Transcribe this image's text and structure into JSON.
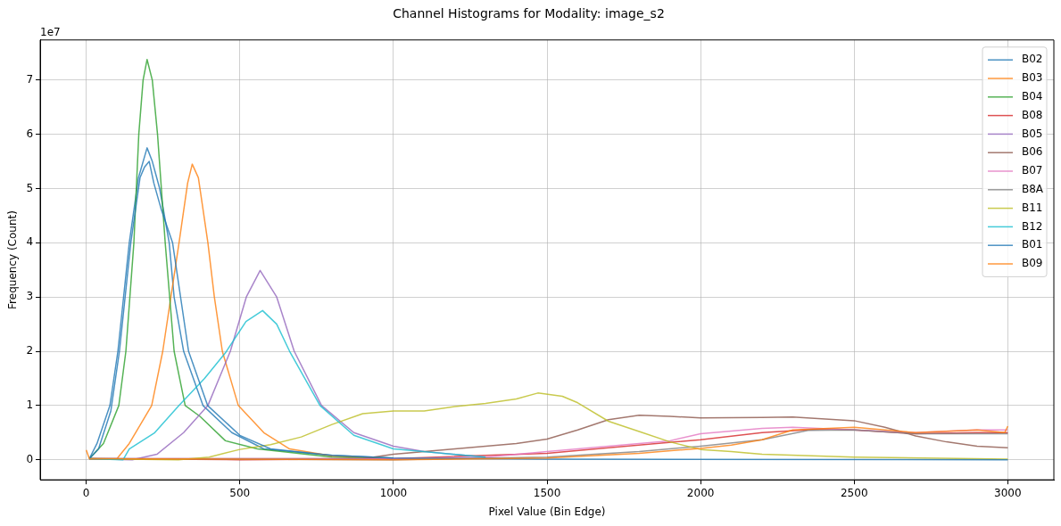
{
  "chart_data": {
    "type": "line",
    "title": "Channel Histograms for Modality: image_s2",
    "xlabel": "Pixel Value (Bin Edge)",
    "ylabel": "Frequency (Count)",
    "annotations": [
      "1e7"
    ],
    "xlim": [
      -150,
      3150
    ],
    "ylim": [
      -0.37,
      7.74
    ],
    "xticks": [
      0,
      500,
      1000,
      1500,
      2000,
      2500,
      3000
    ],
    "yticks": [
      0,
      1,
      2,
      3,
      4,
      5,
      6,
      7
    ],
    "grid": true,
    "legend": "top right",
    "line_style": "solid",
    "marker": "none",
    "series": [
      {
        "name": "B02",
        "color": "#1f77b4",
        "x": [
          10,
          35,
          77,
          103,
          140,
          170,
          198,
          215,
          239,
          270,
          286,
          317,
          380,
          474,
          578,
          800,
          1000
        ],
        "values": [
          0.02,
          0.3,
          1,
          2,
          4,
          5.2,
          5.75,
          5.5,
          5,
          4,
          3,
          2,
          1,
          0.5,
          0.2,
          0.08,
          0.03
        ]
      },
      {
        "name": "B03",
        "color": "#ff7f0e",
        "x": [
          10,
          100,
          140,
          213,
          249,
          302,
          330,
          345,
          365,
          396,
          417,
          443,
          495,
          578,
          662,
          800,
          1000
        ],
        "values": [
          0.02,
          0.02,
          0.3,
          1,
          2,
          4,
          5.1,
          5.45,
          5.2,
          4,
          3,
          2,
          1,
          0.5,
          0.2,
          0.07,
          0.02
        ]
      },
      {
        "name": "B04",
        "color": "#2ca02c",
        "x": [
          10,
          56,
          106,
          129,
          155,
          171,
          185,
          198,
          215,
          232,
          257,
          286,
          322,
          370,
          453,
          557,
          800,
          1000
        ],
        "values": [
          0.02,
          0.3,
          1,
          2,
          4,
          6,
          7,
          7.38,
          7,
          6,
          4,
          2,
          1,
          0.8,
          0.35,
          0.2,
          0.05,
          0.02
        ]
      },
      {
        "name": "B08",
        "color": "#d62728",
        "x": [
          10,
          500,
          1000,
          1500,
          1700,
          2000,
          2200,
          2400,
          2500,
          2700,
          2900,
          3000
        ],
        "values": [
          0.02,
          0,
          0.02,
          0.12,
          0.22,
          0.37,
          0.5,
          0.57,
          0.55,
          0.48,
          0.5,
          0.5
        ]
      },
      {
        "name": "B05",
        "color": "#9467bd",
        "x": [
          10,
          150,
          230,
          317,
          396,
          469,
          521,
          566,
          620,
          677,
          766,
          871,
          1000,
          1100,
          1300
        ],
        "values": [
          0.02,
          0,
          0.1,
          0.5,
          1,
          2,
          3,
          3.49,
          3,
          2,
          1,
          0.5,
          0.25,
          0.15,
          0.05
        ]
      },
      {
        "name": "B06",
        "color": "#8c564b",
        "x": [
          10,
          900,
          1000,
          1100,
          1200,
          1300,
          1400,
          1500,
          1600,
          1700,
          1800,
          1900,
          2000,
          2200,
          2300,
          2500,
          2600,
          2700,
          2800,
          2900,
          3000
        ],
        "values": [
          0.02,
          0.02,
          0.1,
          0.15,
          0.2,
          0.25,
          0.3,
          0.38,
          0.55,
          0.74,
          0.82,
          0.8,
          0.77,
          0.78,
          0.79,
          0.72,
          0.6,
          0.44,
          0.33,
          0.25,
          0.22
        ]
      },
      {
        "name": "B07",
        "color": "#e377c2",
        "x": [
          10,
          1000,
          1300,
          1500,
          1700,
          1900,
          2000,
          2200,
          2300,
          2500,
          2700,
          2900,
          3000
        ],
        "values": [
          0.02,
          0.02,
          0.05,
          0.15,
          0.25,
          0.35,
          0.48,
          0.58,
          0.6,
          0.55,
          0.5,
          0.55,
          0.55
        ]
      },
      {
        "name": "B8A",
        "color": "#7f7f7f",
        "x": [
          10,
          1000,
          1500,
          1800,
          2000,
          2200,
          2350,
          2500,
          2700,
          3000
        ],
        "values": [
          0.02,
          0,
          0.05,
          0.15,
          0.25,
          0.37,
          0.54,
          0.55,
          0.48,
          0.48
        ]
      },
      {
        "name": "B11",
        "color": "#bcbd22",
        "x": [
          10,
          300,
          400,
          500,
          600,
          700,
          800,
          900,
          1000,
          1100,
          1200,
          1300,
          1400,
          1470,
          1550,
          1600,
          1700,
          1800,
          1900,
          2000,
          2100,
          2200,
          2500,
          3000
        ],
        "values": [
          0.02,
          0,
          0.05,
          0.19,
          0.28,
          0.42,
          0.65,
          0.85,
          0.9,
          0.9,
          0.98,
          1.04,
          1.12,
          1.23,
          1.17,
          1.05,
          0.71,
          0.52,
          0.33,
          0.19,
          0.15,
          0.1,
          0.05,
          0.01
        ]
      },
      {
        "name": "B12",
        "color": "#17becf",
        "x": [
          10,
          120,
          140,
          223,
          302,
          385,
          453,
          520,
          574,
          620,
          662,
          761,
          871,
          1000,
          1300
        ],
        "values": [
          0.02,
          0,
          0.2,
          0.5,
          1,
          1.5,
          1.97,
          2.55,
          2.75,
          2.5,
          2,
          1,
          0.45,
          0.2,
          0.05
        ]
      },
      {
        "name": "B01",
        "color": "#1f77b4",
        "x": [
          10,
          40,
          80,
          108,
          145,
          175,
          190,
          205,
          220,
          245,
          281,
          333,
          395,
          500,
          600,
          800,
          1000,
          1500,
          3000
        ],
        "values": [
          0.02,
          0.2,
          0.9,
          2,
          4,
          5.2,
          5.4,
          5.5,
          5.1,
          4.6,
          4,
          2,
          1,
          0.45,
          0.2,
          0.08,
          0.03,
          0.01,
          0
        ]
      },
      {
        "name": "B09",
        "color": "#ff7f0e",
        "x": [
          0,
          10,
          1000,
          1500,
          1800,
          2000,
          2100,
          2200,
          2300,
          2500,
          2700,
          2900,
          2990,
          3000
        ],
        "values": [
          0.18,
          0.02,
          0,
          0.03,
          0.12,
          0.21,
          0.27,
          0.37,
          0.55,
          0.6,
          0.5,
          0.55,
          0.5,
          0.62
        ]
      }
    ]
  }
}
